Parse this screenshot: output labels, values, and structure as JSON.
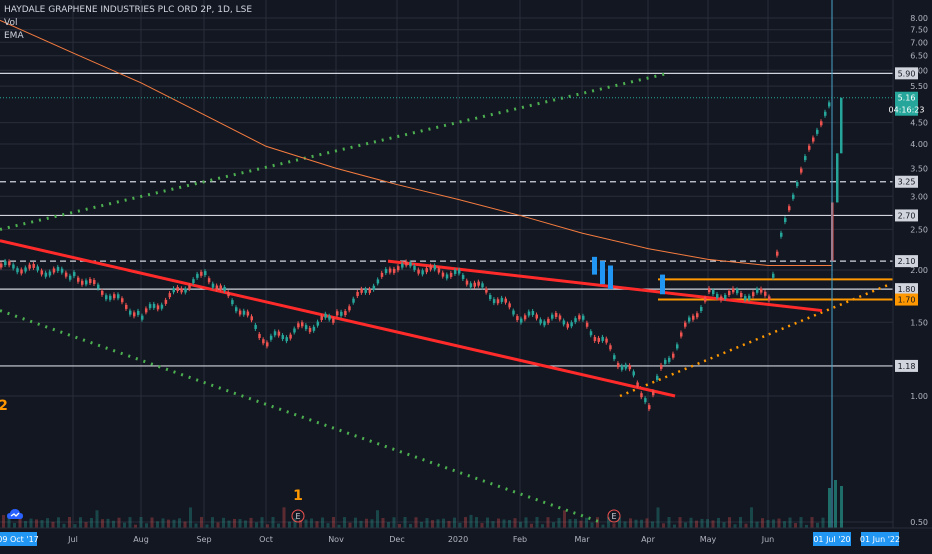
{
  "legend": {
    "symbol": "HAYDALE GRAPHENE INDUSTRIES PLC ORD 2P, 1D, LSE",
    "vol": "Vol",
    "ema": "EMA"
  },
  "colors": {
    "background": "#131722",
    "grid": "#2a2e39",
    "axis_text": "#b2b5be",
    "up": "#26a69a",
    "down": "#ef5350",
    "accent": "#2196f3",
    "ema": "#f57c3f",
    "trendline": "#ff2a2a",
    "support": "#ff9800",
    "dotted": "#4caf50"
  },
  "chart_data": {
    "type": "candlestick",
    "title": "HAYDALE GRAPHENE INDUSTRIES PLC ORD 2P, 1D, LSE",
    "x_tick_labels": [
      "09 Oct '17",
      "Jul",
      "Aug",
      "Sep",
      "Oct",
      "Nov",
      "Dec",
      "2020",
      "Feb",
      "Mar",
      "Apr",
      "May",
      "Jun",
      "01 Jul '20",
      "01 Jun '22"
    ],
    "y_scale": "log",
    "y_ticks": [
      8.0,
      7.5,
      7.0,
      6.5,
      6.0,
      5.5,
      4.5,
      4.0,
      3.5,
      3.0,
      2.5,
      2.0,
      1.5,
      1.0,
      0.5
    ],
    "y_tick_labels": [
      "8.00",
      "7.50",
      "7.00",
      "6.50",
      "6.00",
      "5.50",
      "4.50",
      "4.00",
      "3.50",
      "3.00",
      "2.50",
      "2.00",
      "1.50",
      "1.00",
      "0.50"
    ],
    "horizontal_levels": [
      {
        "price": 5.9,
        "label": "5.90",
        "style": "solid"
      },
      {
        "price": 3.25,
        "label": "3.25",
        "style": "dashed"
      },
      {
        "price": 2.7,
        "label": "2.70",
        "style": "solid"
      },
      {
        "price": 2.1,
        "label": "2.10",
        "style": "dashed"
      },
      {
        "price": 1.8,
        "label": "1.80",
        "style": "solid"
      },
      {
        "price": 1.18,
        "label": "1.18",
        "style": "solid"
      }
    ],
    "support_resistance": [
      {
        "price": 1.9,
        "style": "orange-solid"
      },
      {
        "price": 1.7,
        "label": "1.70",
        "style": "orange-solid"
      }
    ],
    "last_price": {
      "value": 5.16,
      "label": "5.16",
      "countdown": "04:16:23"
    },
    "ema_series": [
      [
        "Jun 2019",
        7.9
      ],
      [
        "Jul 2019",
        6.6
      ],
      [
        "Aug 2019",
        5.6
      ],
      [
        "Sep 2019",
        4.7
      ],
      [
        "Oct 2019",
        3.95
      ],
      [
        "Nov 2019",
        3.5
      ],
      [
        "Dec 2019",
        3.2
      ],
      [
        "Jan 2020",
        2.95
      ],
      [
        "Feb 2020",
        2.7
      ],
      [
        "Mar 2020",
        2.45
      ],
      [
        "Apr 2020",
        2.25
      ],
      [
        "May 2020",
        2.12
      ],
      [
        "Jun 2020",
        2.05
      ],
      [
        "Jul 2020",
        2.05
      ]
    ],
    "price_path": [
      [
        "Jun 2019",
        2.05
      ],
      [
        "Jul 2019",
        1.95
      ],
      [
        "Aug 2019",
        1.55
      ],
      [
        "Sep 2019",
        1.95
      ],
      [
        "Oct 2019",
        1.35
      ],
      [
        "Nov 2019",
        1.55
      ],
      [
        "Dec 2019",
        2.05
      ],
      [
        "Jan 2020",
        1.95
      ],
      [
        "Feb 2020",
        1.55
      ],
      [
        "Mar 2020",
        1.5
      ],
      [
        "Apr 2020",
        0.98
      ],
      [
        "May 2020",
        1.75
      ],
      [
        "Jun 2020",
        1.75
      ],
      [
        "Jul 2020",
        5.16
      ]
    ],
    "markers": [
      {
        "label": "E",
        "position": "Oct 2019"
      },
      {
        "label": "E",
        "position": "Mar 2020"
      },
      {
        "label": "1",
        "position": "Oct 2019"
      },
      {
        "label": "2",
        "position": "Jun 2019"
      }
    ]
  }
}
